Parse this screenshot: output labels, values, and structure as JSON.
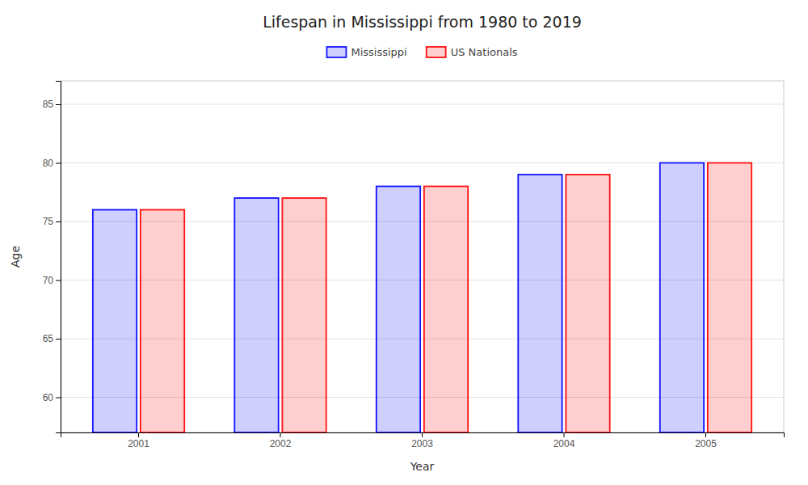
{
  "chart_data": {
    "type": "bar",
    "title": "Lifespan in Mississippi from 1980 to 2019",
    "x_label": "Year",
    "y_label": "Age",
    "categories": [
      "2001",
      "2002",
      "2003",
      "2004",
      "2005"
    ],
    "series": [
      {
        "name": "Mississippi",
        "color": "#1111ff",
        "values": [
          76,
          77,
          78,
          79,
          80
        ]
      },
      {
        "name": "US Nationals",
        "color": "#ff1111",
        "values": [
          76,
          77,
          78,
          79,
          80
        ]
      }
    ],
    "ylim": [
      57,
      87
    ],
    "yticks": [
      60,
      65,
      70,
      75,
      80,
      85
    ],
    "grid": true,
    "legend": "top"
  }
}
